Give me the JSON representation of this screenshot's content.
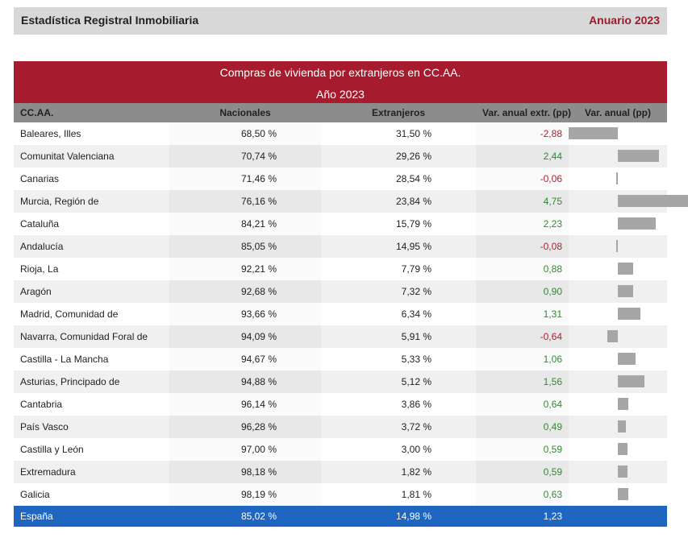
{
  "header": {
    "left": "Estadística Registral Inmobiliaria",
    "right": "Anuario 2023"
  },
  "banner": {
    "title": "Compras de vivienda por extranjeros en CC.AA.",
    "year": "Año 2023"
  },
  "columns": [
    "CC.AA.",
    "Nacionales",
    "Extranjeros",
    "Var. anual extr. (pp)",
    "Var. anual (pp)"
  ],
  "rows": [
    {
      "name": "Baleares, Illes",
      "nacionales": "68,50 %",
      "extranjeros": "31,50 %",
      "var": "-2,88",
      "value": -2.88
    },
    {
      "name": "Comunitat Valenciana",
      "nacionales": "70,74 %",
      "extranjeros": "29,26 %",
      "var": "2,44",
      "value": 2.44
    },
    {
      "name": "Canarias",
      "nacionales": "71,46 %",
      "extranjeros": "28,54 %",
      "var": "-0,06",
      "value": -0.06
    },
    {
      "name": "Murcia, Región de",
      "nacionales": "76,16 %",
      "extranjeros": "23,84 %",
      "var": "4,75",
      "value": 4.75
    },
    {
      "name": "Cataluña",
      "nacionales": "84,21 %",
      "extranjeros": "15,79 %",
      "var": "2,23",
      "value": 2.23
    },
    {
      "name": "Andalucía",
      "nacionales": "85,05 %",
      "extranjeros": "14,95 %",
      "var": "-0,08",
      "value": -0.08
    },
    {
      "name": "Rioja, La",
      "nacionales": "92,21 %",
      "extranjeros": "7,79 %",
      "var": "0,88",
      "value": 0.88
    },
    {
      "name": "Aragón",
      "nacionales": "92,68 %",
      "extranjeros": "7,32 %",
      "var": "0,90",
      "value": 0.9
    },
    {
      "name": "Madrid, Comunidad de",
      "nacionales": "93,66 %",
      "extranjeros": "6,34 %",
      "var": "1,31",
      "value": 1.31
    },
    {
      "name": "Navarra, Comunidad Foral de",
      "nacionales": "94,09 %",
      "extranjeros": "5,91 %",
      "var": "-0,64",
      "value": -0.64
    },
    {
      "name": "Castilla - La Mancha",
      "nacionales": "94,67 %",
      "extranjeros": "5,33 %",
      "var": "1,06",
      "value": 1.06
    },
    {
      "name": "Asturias, Principado de",
      "nacionales": "94,88 %",
      "extranjeros": "5,12 %",
      "var": "1,56",
      "value": 1.56
    },
    {
      "name": "Cantabria",
      "nacionales": "96,14 %",
      "extranjeros": "3,86 %",
      "var": "0,64",
      "value": 0.64
    },
    {
      "name": "País Vasco",
      "nacionales": "96,28 %",
      "extranjeros": "3,72 %",
      "var": "0,49",
      "value": 0.49
    },
    {
      "name": "Castilla y León",
      "nacionales": "97,00 %",
      "extranjeros": "3,00 %",
      "var": "0,59",
      "value": 0.59
    },
    {
      "name": "Extremadura",
      "nacionales": "98,18 %",
      "extranjeros": "1,82 %",
      "var": "0,59",
      "value": 0.59
    },
    {
      "name": "Galicia",
      "nacionales": "98,19 %",
      "extranjeros": "1,81 %",
      "var": "0,63",
      "value": 0.63
    }
  ],
  "total": {
    "name": "España",
    "nacionales": "85,02 %",
    "extranjeros": "14,98 %",
    "var": "1,23"
  },
  "colors": {
    "banner": "#a61c2e",
    "total": "#1f66c1",
    "positive": "#2e8b2e",
    "negative": "#b01e2f",
    "bar": "#a6a6a6"
  }
}
